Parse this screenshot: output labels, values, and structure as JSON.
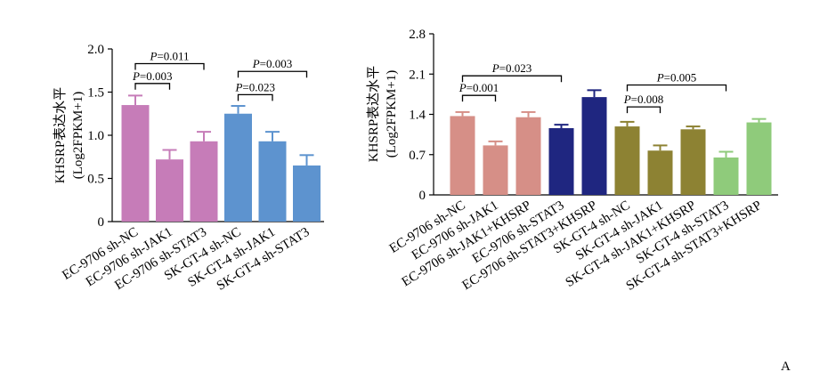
{
  "panel_label": "A",
  "chart_data": [
    {
      "type": "bar",
      "ylabel_line1": "KHSRP表达水平",
      "ylabel_line2": "(Log2FPKM+1)",
      "ylim": [
        0,
        2.0
      ],
      "yticks": [
        "0",
        "0.5",
        "1.0",
        "1.5",
        "2.0"
      ],
      "ytick_values": [
        0,
        0.5,
        1.0,
        1.5,
        2.0
      ],
      "categories": [
        "EC-9706 sh-NC",
        "EC-9706 sh-JAK1",
        "EC-9706 sh-STAT3",
        "SK-GT-4 sh-NC",
        "SK-GT-4 sh-JAK1",
        "SK-GT-4 sh-STAT3"
      ],
      "values": [
        1.35,
        0.72,
        0.93,
        1.25,
        0.93,
        0.65
      ],
      "errors": [
        0.11,
        0.11,
        0.11,
        0.09,
        0.11,
        0.12
      ],
      "colors": [
        "#c67cb8",
        "#c67cb8",
        "#c67cb8",
        "#5d93cf",
        "#5d93cf",
        "#5d93cf"
      ],
      "annotations": [
        {
          "from": 0,
          "to": 1,
          "text": "P=0.003",
          "y": 1.6
        },
        {
          "from": 0,
          "to": 2,
          "text": "P=0.011",
          "y": 1.83
        },
        {
          "from": 3,
          "to": 4,
          "text": "P=0.023",
          "y": 1.47
        },
        {
          "from": 3,
          "to": 5,
          "text": "P=0.003",
          "y": 1.74
        }
      ]
    },
    {
      "type": "bar",
      "ylabel_line1": "KHSRP表达水平",
      "ylabel_line2": "(Log2FPKM+1)",
      "ylim": [
        0,
        2.8
      ],
      "yticks": [
        "0",
        "0.7",
        "1.4",
        "2.1",
        "2.8"
      ],
      "ytick_values": [
        0,
        0.7,
        1.4,
        2.1,
        2.8
      ],
      "categories": [
        "EC-9706 sh-NC",
        "EC-9706 sh-JAK1",
        "EC-9706 sh-JAK1+KHSRP",
        "EC-9706 sh-STAT3",
        "EC-9706 sh-STAT3+KHSRP",
        "SK-GT-4 sh-NC",
        "SK-GT-4 sh-JAK1",
        "SK-GT-4 sh-JAK1+KHSRP",
        "SK-GT-4 sh-STAT3",
        "SK-GT-4 sh-STAT3+KHSRP"
      ],
      "values": [
        1.37,
        0.86,
        1.35,
        1.16,
        1.7,
        1.19,
        0.77,
        1.14,
        0.65,
        1.26
      ],
      "errors": [
        0.07,
        0.07,
        0.09,
        0.06,
        0.12,
        0.08,
        0.09,
        0.05,
        0.1,
        0.06
      ],
      "colors": [
        "#d68f87",
        "#d68f87",
        "#d68f87",
        "#1f2680",
        "#1f2680",
        "#8d8233",
        "#8d8233",
        "#8d8233",
        "#8fcb7b",
        "#8fcb7b"
      ],
      "annotations": [
        {
          "from": 0,
          "to": 1,
          "text": "P=0.001",
          "y": 1.73
        },
        {
          "from": 0,
          "to": 3,
          "text": "P=0.023",
          "y": 2.07
        },
        {
          "from": 5,
          "to": 6,
          "text": "P=0.008",
          "y": 1.53
        },
        {
          "from": 5,
          "to": 8,
          "text": "P=0.005",
          "y": 1.91
        }
      ]
    }
  ]
}
